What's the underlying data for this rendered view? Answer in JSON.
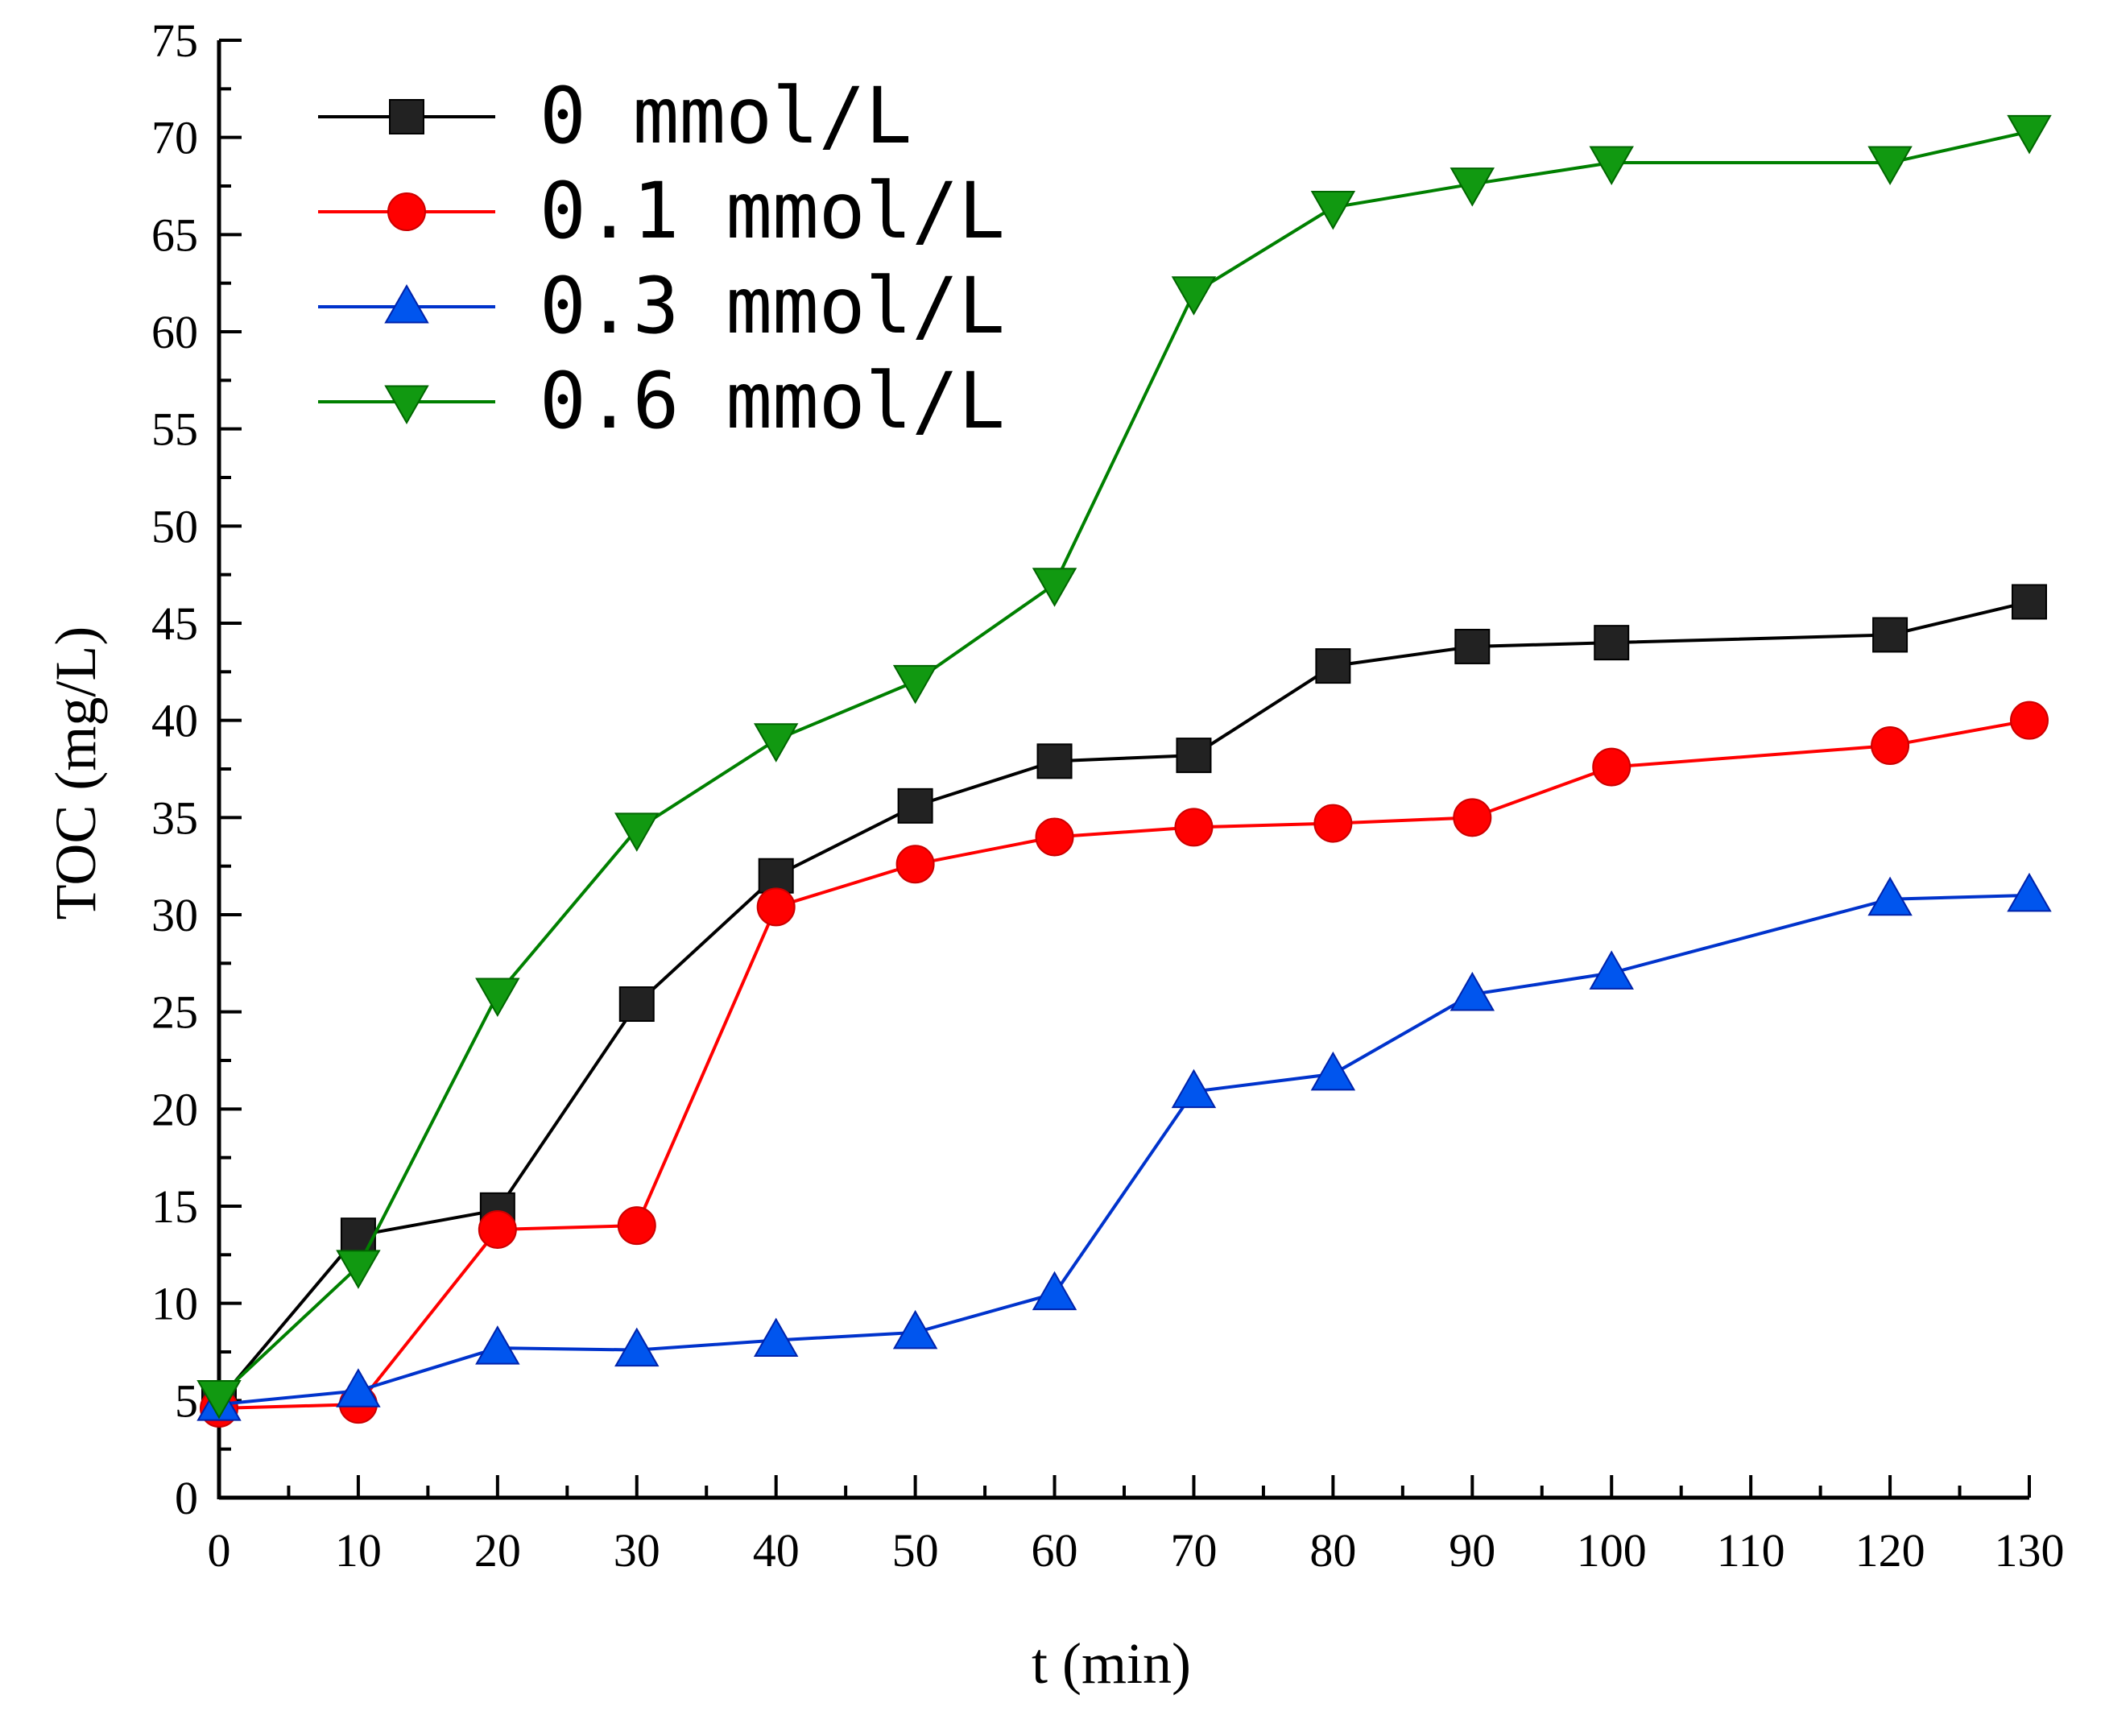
{
  "chart_data": {
    "type": "line",
    "title": "",
    "xlabel": "t (min)",
    "ylabel": "TOC (mg/L)",
    "xlim": [
      0,
      130
    ],
    "ylim": [
      0,
      75
    ],
    "x_ticks": [
      0,
      10,
      20,
      30,
      40,
      50,
      60,
      70,
      80,
      90,
      100,
      110,
      120,
      130
    ],
    "y_ticks": [
      0,
      5,
      10,
      15,
      20,
      25,
      30,
      35,
      40,
      45,
      50,
      55,
      60,
      65,
      70,
      75
    ],
    "x": [
      0,
      10,
      20,
      30,
      40,
      50,
      60,
      70,
      80,
      90,
      100,
      120,
      130
    ],
    "grid": false,
    "legend_position": "top-left",
    "series": [
      {
        "name": "0 mmol/L",
        "color": "#000000",
        "marker": "square",
        "marker_color": "#222222",
        "values": [
          5.0,
          13.5,
          14.8,
          25.4,
          32.0,
          35.6,
          37.9,
          38.2,
          42.8,
          43.8,
          44.0,
          44.4,
          46.1
        ]
      },
      {
        "name": "0.1 mmol/L",
        "color": "#ff0000",
        "marker": "circle",
        "marker_color": "#ff0000",
        "values": [
          4.6,
          4.8,
          13.8,
          14.0,
          30.4,
          32.6,
          34.0,
          34.5,
          34.7,
          35.0,
          37.6,
          38.7,
          40.0
        ]
      },
      {
        "name": "0.3 mmol/L",
        "color": "#0033cc",
        "marker": "triangle-up",
        "marker_color": "#0055ee",
        "values": [
          4.8,
          5.5,
          7.7,
          7.6,
          8.1,
          8.5,
          10.5,
          20.9,
          21.8,
          25.9,
          27.0,
          30.8,
          31.0
        ]
      },
      {
        "name": "0.6 mmol/L",
        "color": "#008000",
        "marker": "triangle-down",
        "marker_color": "#119911",
        "values": [
          5.2,
          11.9,
          25.9,
          34.4,
          39.0,
          42.0,
          47.0,
          62.0,
          66.4,
          67.6,
          68.7,
          68.7,
          70.3
        ]
      }
    ]
  }
}
